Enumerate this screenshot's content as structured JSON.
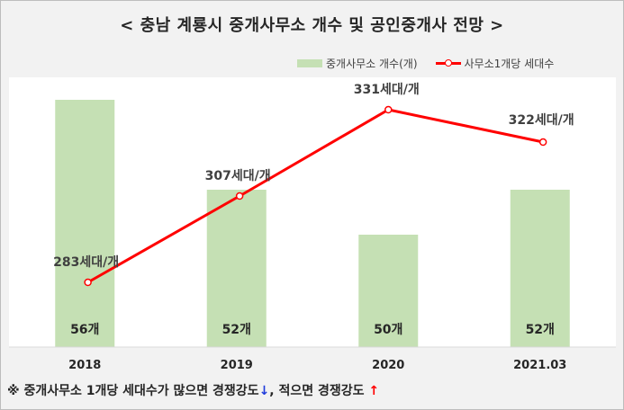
{
  "title": "< 충남 계룡시 중개사무소 개수 및 공인중개사 전망 >",
  "legend": {
    "bar_label": "중개사무소 개수(개)",
    "line_label": "사무소1개당 세대수"
  },
  "footnote": {
    "part1": "※ 중개사무소 1개당 세대수가 많으면 경쟁강도",
    "arrow_down": "↓",
    "part2": ", 적으면 경쟁강도",
    "arrow_up": "↑"
  },
  "colors": {
    "bar": "#c5e0b4",
    "line": "#ff0000",
    "arrow_down": "#1f3bdb",
    "arrow_up": "#ff0000"
  },
  "chart_data": {
    "type": "bar",
    "categories": [
      "2018",
      "2019",
      "2020",
      "2021.03"
    ],
    "series": [
      {
        "name": "중개사무소 개수(개)",
        "type": "bar",
        "values": [
          56,
          52,
          50,
          52
        ],
        "labels": [
          "56개",
          "52개",
          "50개",
          "52개"
        ],
        "ylim": [
          45,
          57
        ]
      },
      {
        "name": "사무소1개당 세대수",
        "type": "line",
        "values": [
          283,
          307,
          331,
          322
        ],
        "labels": [
          "283세대/개",
          "307세대/개",
          "331세대/개",
          "322세대/개"
        ],
        "ylim": [
          265,
          340
        ]
      }
    ],
    "grid": false,
    "legend_position": "top-right"
  }
}
